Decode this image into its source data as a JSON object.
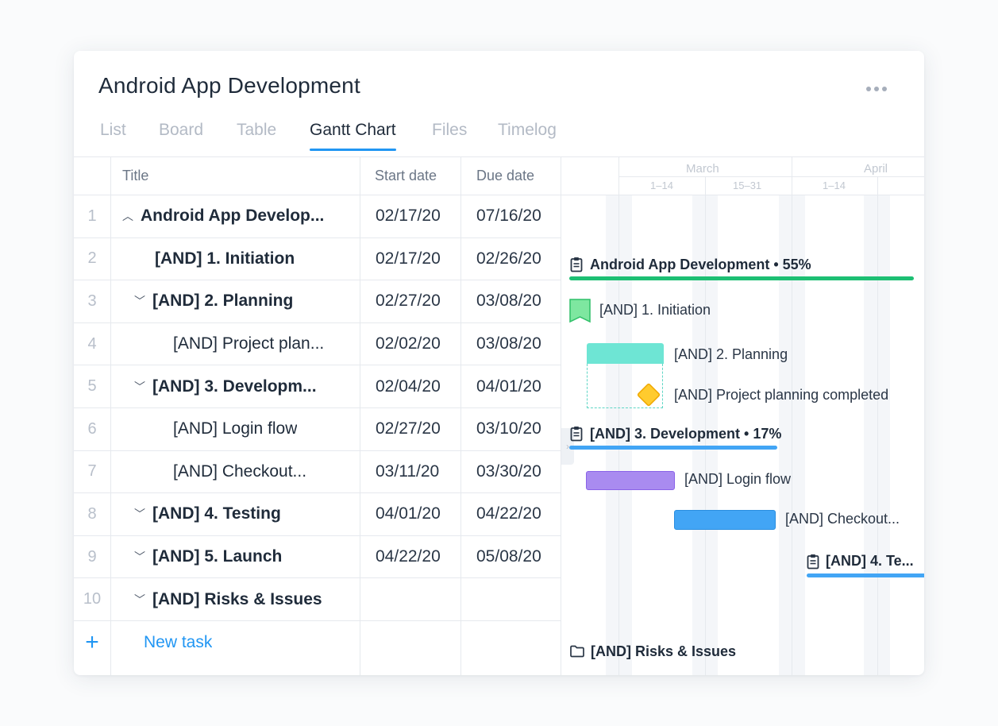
{
  "project": {
    "title": "Android App Development"
  },
  "tabs": [
    "List",
    "Board",
    "Table",
    "Gantt Chart",
    "Files",
    "Timelog"
  ],
  "active_tab": "Gantt Chart",
  "table": {
    "headers": {
      "title": "Title",
      "start": "Start date",
      "due": "Due date"
    },
    "rows": [
      {
        "num": "1",
        "title": "Android App Develop...",
        "start": "02/17/20",
        "due": "07/16/20"
      },
      {
        "num": "2",
        "title": "[AND] 1. Initiation",
        "start": "02/17/20",
        "due": "02/26/20"
      },
      {
        "num": "3",
        "title": "[AND] 2. Planning",
        "start": "02/27/20",
        "due": "03/08/20"
      },
      {
        "num": "4",
        "title": "[AND] Project plan...",
        "start": "02/02/20",
        "due": "03/08/20"
      },
      {
        "num": "5",
        "title": "[AND] 3. Developm...",
        "start": "02/04/20",
        "due": "04/01/20"
      },
      {
        "num": "6",
        "title": "[AND] Login flow",
        "start": "02/27/20",
        "due": "03/10/20"
      },
      {
        "num": "7",
        "title": "[AND] Checkout...",
        "start": "03/11/20",
        "due": "03/30/20"
      },
      {
        "num": "8",
        "title": "[AND] 4. Testing",
        "start": "04/01/20",
        "due": "04/22/20"
      },
      {
        "num": "9",
        "title": "[AND] 5. Launch",
        "start": "04/22/20",
        "due": "05/08/20"
      },
      {
        "num": "10",
        "title": "[AND] Risks & Issues",
        "start": "",
        "due": ""
      }
    ],
    "new_task": {
      "plus": "+",
      "label": "New task"
    }
  },
  "gantt": {
    "months": [
      "March",
      "April"
    ],
    "weeks": [
      "1–14",
      "15–31",
      "1–14"
    ],
    "items": [
      {
        "label": "Android App Development • 55%",
        "icon": "clipboard-icon",
        "color": "#1dbf73"
      },
      {
        "label": "[AND] 1. Initiation",
        "icon": "milestone-flag-icon",
        "color": "#7ee7a0"
      },
      {
        "label": "[AND] 2. Planning",
        "color": "#6ee5d4"
      },
      {
        "label": "[AND] Project planning completed",
        "icon": "milestone-diamond-icon",
        "color": "#ffcb2e"
      },
      {
        "label": "[AND] 3. Development • 17%",
        "icon": "clipboard-icon",
        "color": "#42a5f5"
      },
      {
        "label": "[AND] Login flow",
        "color": "#a98bf0"
      },
      {
        "label": "[AND] Checkout...",
        "color": "#42a5f5"
      },
      {
        "label": "[AND] 4. Te...",
        "icon": "clipboard-icon",
        "color": "#42a5f5"
      },
      {
        "label": "[AND] Risks & Issues",
        "icon": "folder-icon"
      }
    ],
    "collapse_handle_icon": "chevron-right-icon"
  },
  "icons": {
    "more": "more-horizontal-icon",
    "expand": "chevron-up-icon",
    "collapse": "chevron-down-icon"
  }
}
